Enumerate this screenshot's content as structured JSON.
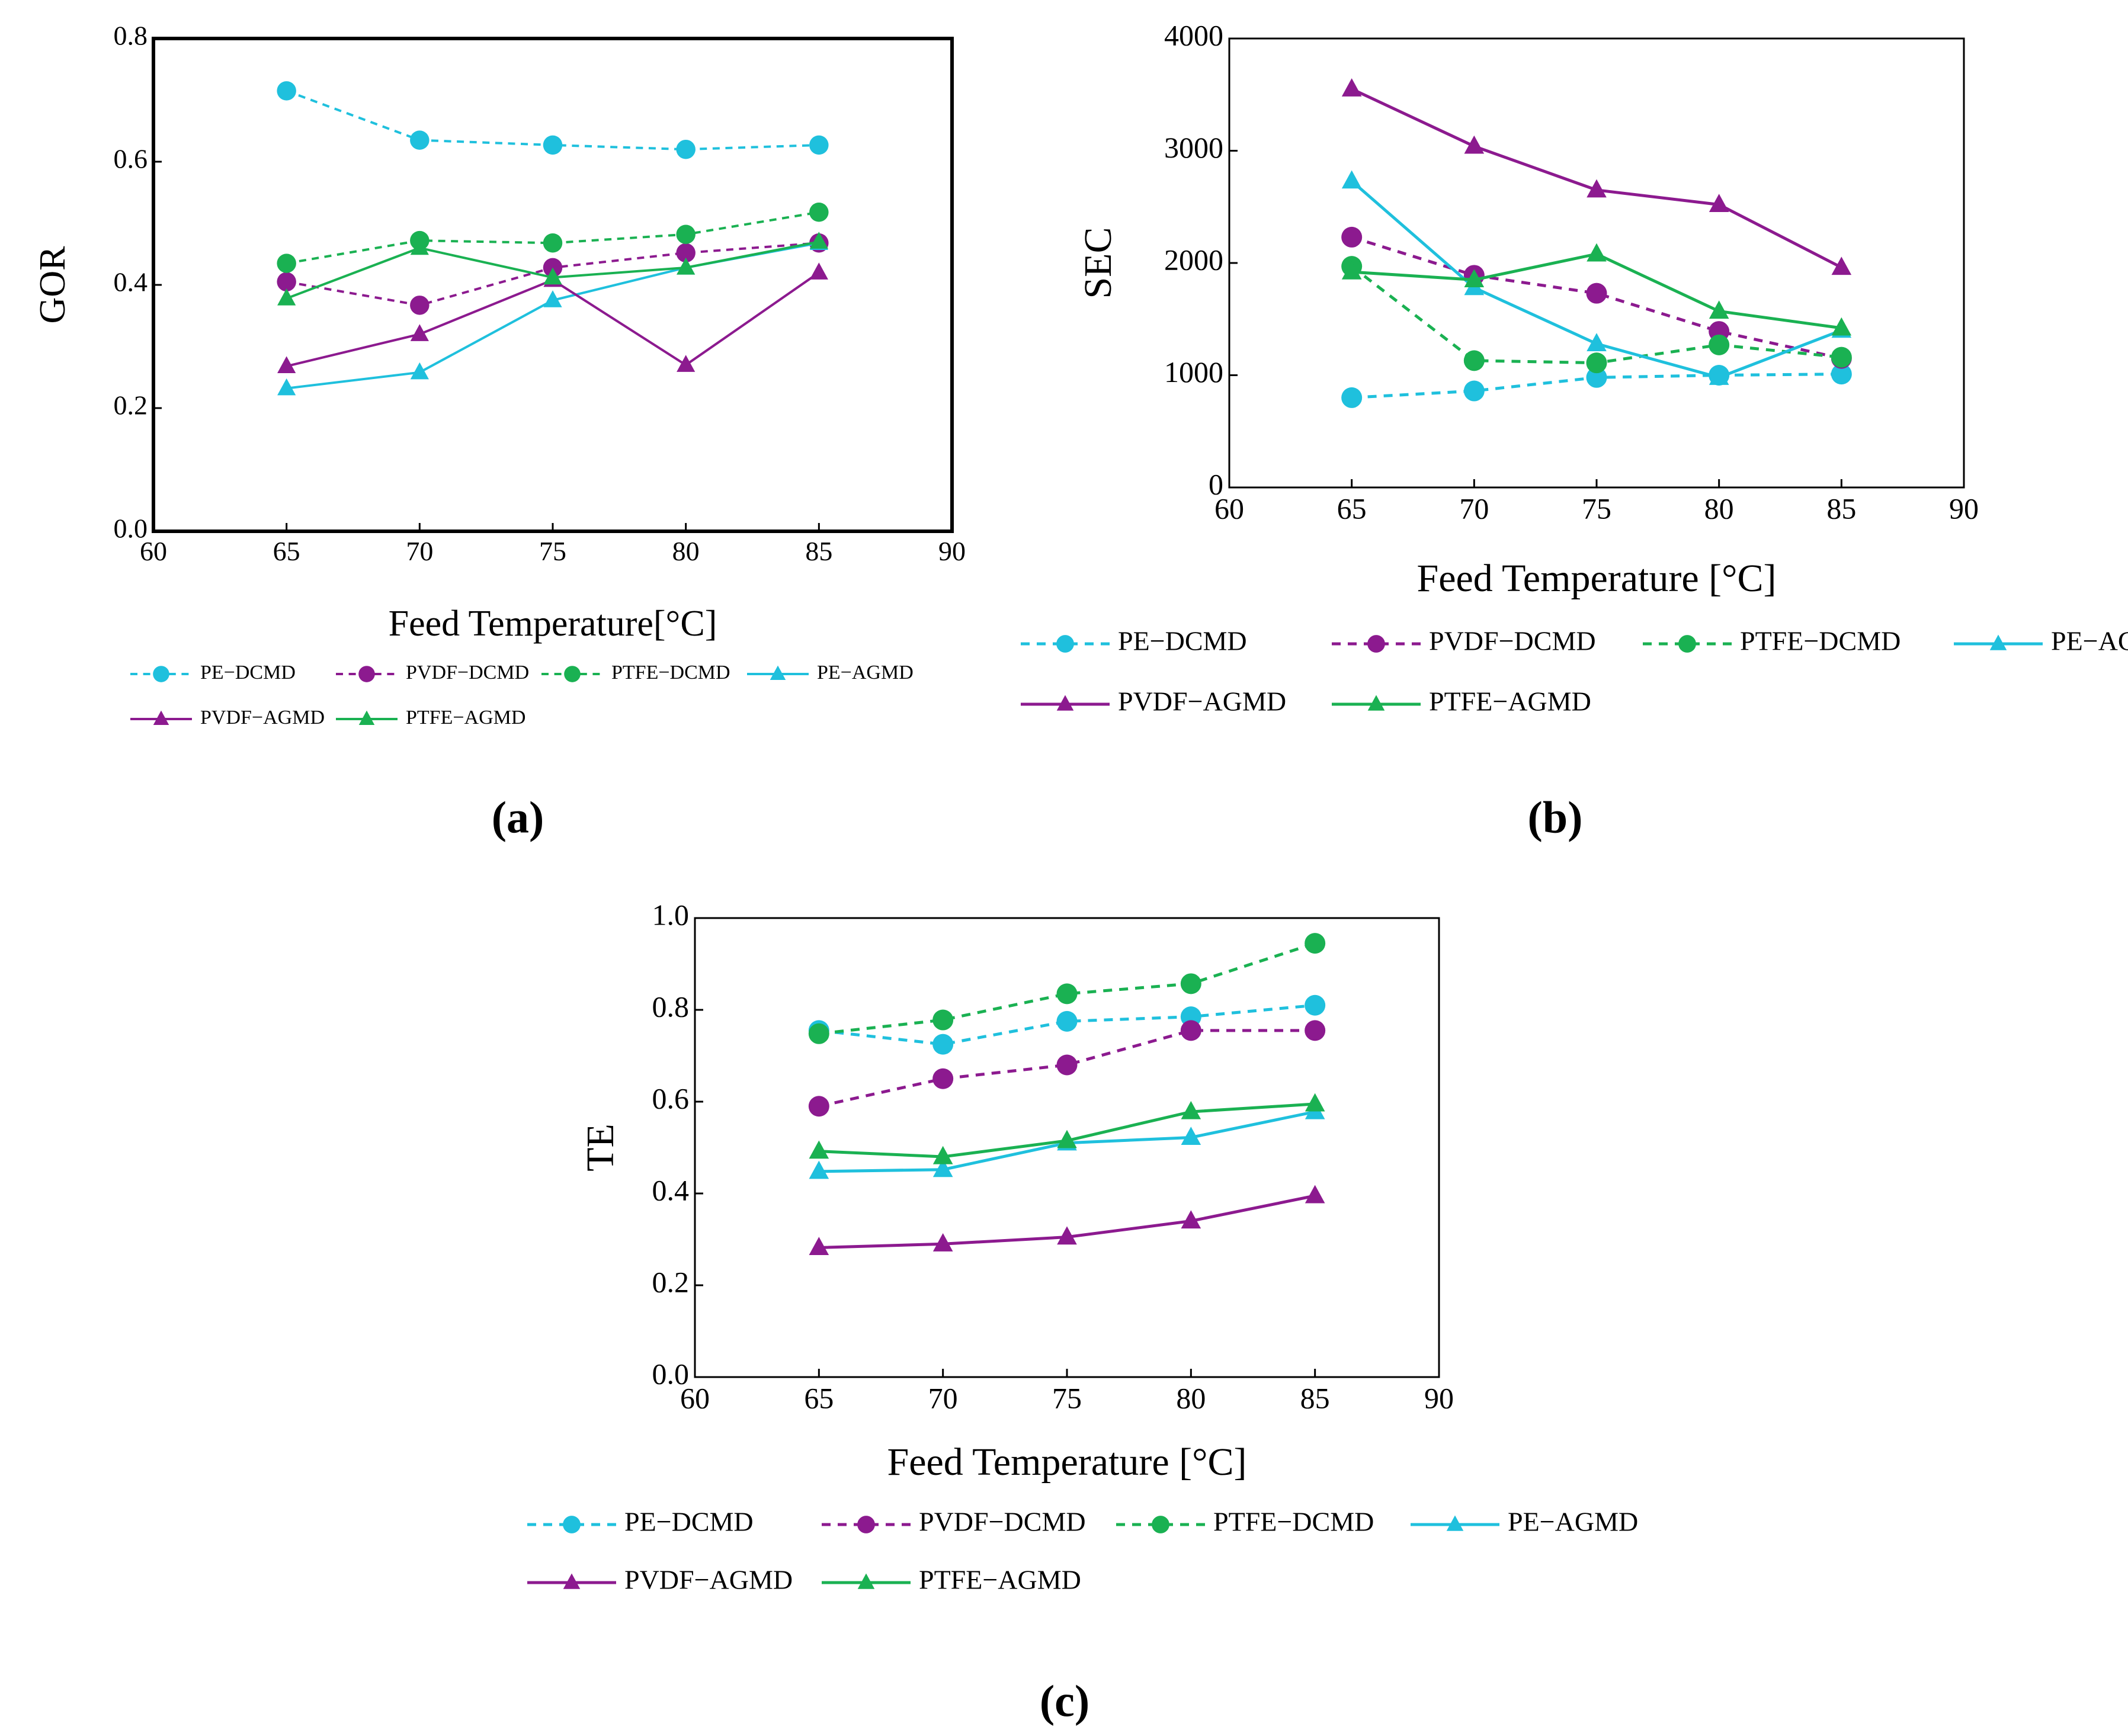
{
  "chart_data": [
    {
      "type": "line",
      "panel_label": "(a)",
      "x_label": "Feed Temperature[°C]",
      "y_label": "GOR",
      "x": [
        65,
        70,
        75,
        80,
        85
      ],
      "xlim": [
        60,
        90
      ],
      "xticks": [
        60,
        65,
        70,
        75,
        80,
        85,
        90
      ],
      "ylim": [
        0,
        0.8
      ],
      "yticks": [
        {
          "value": 0,
          "label": "0.0"
        },
        0.2,
        0.4,
        0.6,
        0.8
      ],
      "series": [
        {
          "name": "PE−DCMD",
          "color": "#1fc0dd",
          "dash": true,
          "marker": "circle",
          "values": [
            0.715,
            0.635,
            0.627,
            0.62,
            0.627
          ]
        },
        {
          "name": "PVDF−DCMD",
          "color": "#8c1a8f",
          "dash": true,
          "marker": "circle",
          "values": [
            0.405,
            0.367,
            0.428,
            0.452,
            0.468
          ]
        },
        {
          "name": "PTFE−DCMD",
          "color": "#1ab152",
          "dash": true,
          "marker": "circle",
          "values": [
            0.435,
            0.472,
            0.468,
            0.482,
            0.518
          ]
        },
        {
          "name": "PE−AGMD",
          "color": "#1fc0dd",
          "dash": false,
          "marker": "triangle",
          "values": [
            0.232,
            0.258,
            0.375,
            0.428,
            0.468
          ]
        },
        {
          "name": "PVDF−AGMD",
          "color": "#8c1a8f",
          "dash": false,
          "marker": "triangle",
          "values": [
            0.268,
            0.32,
            0.408,
            0.27,
            0.42
          ]
        },
        {
          "name": "PTFE−AGMD",
          "color": "#1ab152",
          "dash": false,
          "marker": "triangle",
          "values": [
            0.378,
            0.46,
            0.412,
            0.428,
            0.47
          ]
        }
      ]
    },
    {
      "type": "line",
      "panel_label": "(b)",
      "x_label": "Feed Temperature [°C]",
      "y_label": "SEC",
      "x": [
        65,
        70,
        75,
        80,
        85
      ],
      "xlim": [
        60,
        90
      ],
      "xticks": [
        60,
        65,
        70,
        75,
        80,
        85,
        90
      ],
      "ylim": [
        0,
        4000
      ],
      "yticks": [
        0,
        1000,
        2000,
        3000,
        4000
      ],
      "series": [
        {
          "name": "PE−DCMD",
          "color": "#1fc0dd",
          "dash": true,
          "marker": "circle",
          "values": [
            800,
            860,
            980,
            1000,
            1010
          ]
        },
        {
          "name": "PVDF−DCMD",
          "color": "#8c1a8f",
          "dash": true,
          "marker": "circle",
          "values": [
            2230,
            1890,
            1730,
            1390,
            1150
          ]
        },
        {
          "name": "PTFE−DCMD",
          "color": "#1ab152",
          "dash": true,
          "marker": "circle",
          "values": [
            1970,
            1130,
            1110,
            1270,
            1160
          ]
        },
        {
          "name": "PE−AGMD",
          "color": "#1fc0dd",
          "dash": false,
          "marker": "triangle",
          "values": [
            2730,
            1780,
            1280,
            980,
            1400
          ]
        },
        {
          "name": "PVDF−AGMD",
          "color": "#8c1a8f",
          "dash": false,
          "marker": "triangle",
          "values": [
            3550,
            3040,
            2650,
            2520,
            1960
          ]
        },
        {
          "name": "PTFE−AGMD",
          "color": "#1ab152",
          "dash": false,
          "marker": "triangle",
          "values": [
            1920,
            1850,
            2080,
            1570,
            1420
          ]
        }
      ]
    },
    {
      "type": "line",
      "panel_label": "(c)",
      "x_label": "Feed Temperature [°C]",
      "y_label": "TE",
      "x": [
        65,
        70,
        75,
        80,
        85
      ],
      "xlim": [
        60,
        90
      ],
      "xticks": [
        60,
        65,
        70,
        75,
        80,
        85,
        90
      ],
      "ylim": [
        0,
        1.0
      ],
      "yticks": [
        {
          "value": 0,
          "label": "0.0"
        },
        0.2,
        0.4,
        0.6,
        0.8,
        {
          "value": 1.0,
          "label": "1.0"
        }
      ],
      "series": [
        {
          "name": "PE−DCMD",
          "color": "#1fc0dd",
          "dash": true,
          "marker": "circle",
          "values": [
            0.755,
            0.725,
            0.775,
            0.785,
            0.81
          ]
        },
        {
          "name": "PVDF−DCMD",
          "color": "#8c1a8f",
          "dash": true,
          "marker": "circle",
          "values": [
            0.59,
            0.65,
            0.68,
            0.755,
            0.755
          ]
        },
        {
          "name": "PTFE−DCMD",
          "color": "#1ab152",
          "dash": true,
          "marker": "circle",
          "values": [
            0.748,
            0.778,
            0.835,
            0.857,
            0.945
          ]
        },
        {
          "name": "PE−AGMD",
          "color": "#1fc0dd",
          "dash": false,
          "marker": "triangle",
          "values": [
            0.448,
            0.452,
            0.51,
            0.522,
            0.578
          ]
        },
        {
          "name": "PVDF−AGMD",
          "color": "#8c1a8f",
          "dash": false,
          "marker": "triangle",
          "values": [
            0.282,
            0.29,
            0.305,
            0.34,
            0.395
          ]
        },
        {
          "name": "PTFE−AGMD",
          "color": "#1ab152",
          "dash": false,
          "marker": "triangle",
          "values": [
            0.492,
            0.48,
            0.515,
            0.578,
            0.595
          ]
        }
      ]
    }
  ]
}
